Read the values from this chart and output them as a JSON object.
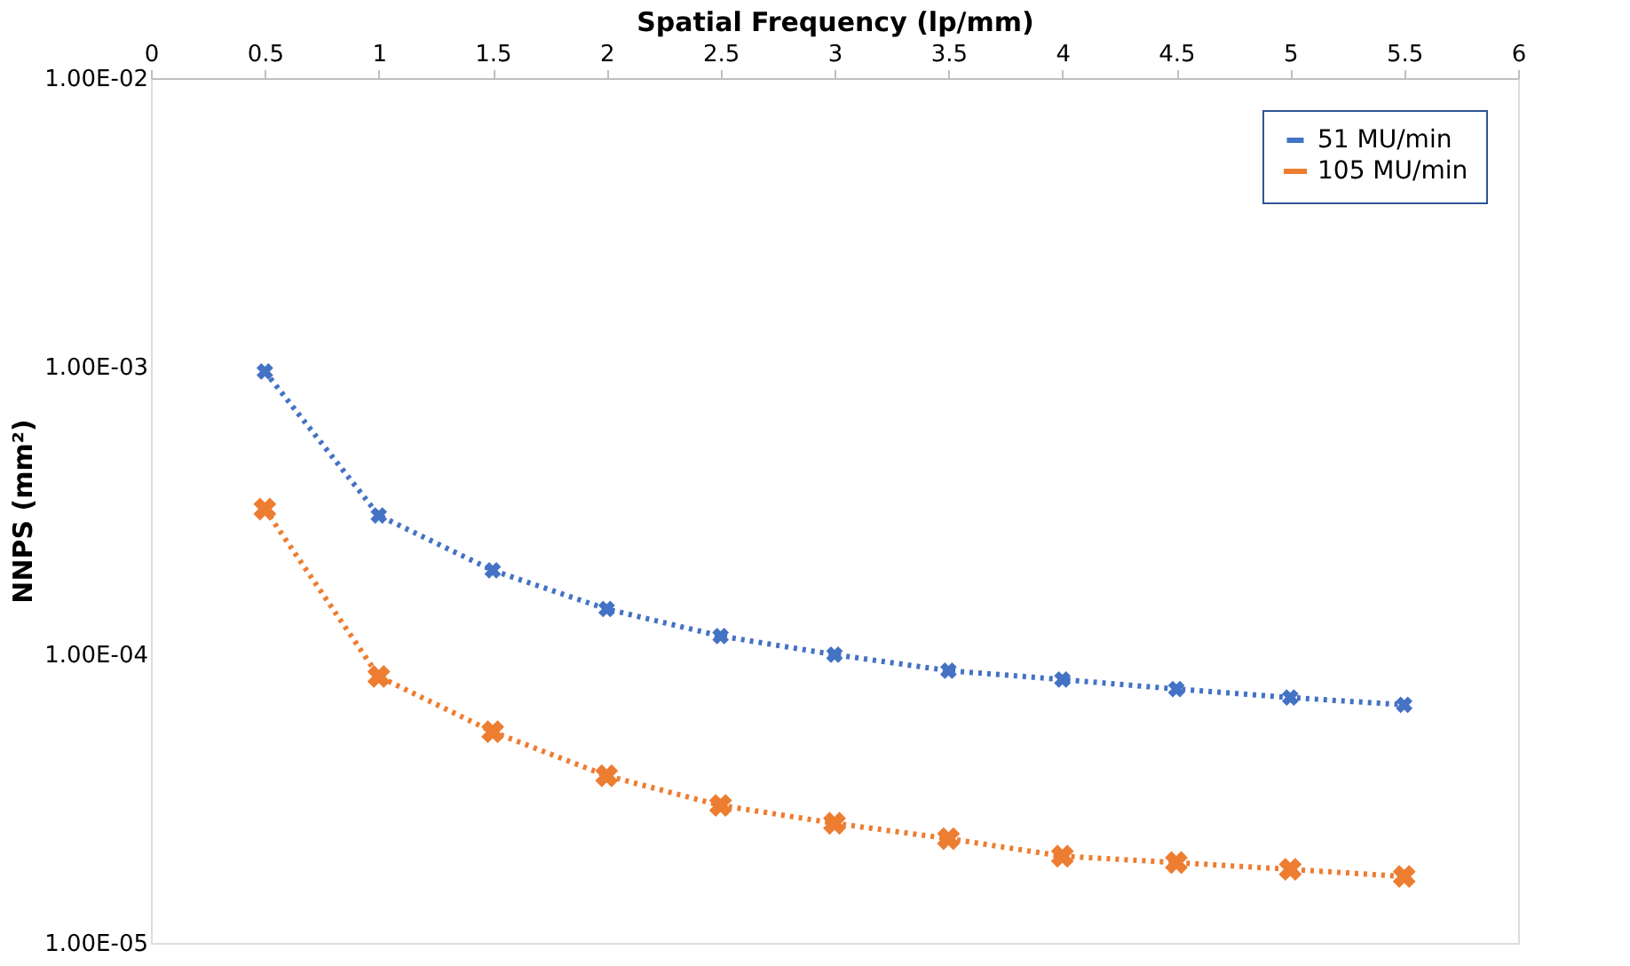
{
  "chart_data": {
    "type": "line",
    "xlabel": "Spatial Frequency (lp/mm)",
    "ylabel": "NNPS (mm²)",
    "log": "y",
    "grid": false,
    "legend": "top right",
    "marker": "cross",
    "line_style": "dotted",
    "x": [
      0.5,
      1,
      1.5,
      2,
      2.5,
      3,
      3.5,
      4,
      4.5,
      5,
      5.5
    ],
    "xlim": [
      0,
      6
    ],
    "xticks": [
      0,
      0.5,
      1,
      1.5,
      2,
      2.5,
      3,
      3.5,
      4,
      4.5,
      5,
      5.5,
      6
    ],
    "ylim": [
      1e-05,
      0.01
    ],
    "yticks": [
      {
        "value": 1e-05,
        "label": "1.00E-05"
      },
      {
        "value": 0.0001,
        "label": "1.00E-04"
      },
      {
        "value": 0.001,
        "label": "1.00E-03"
      },
      {
        "value": 0.01,
        "label": "1.00E-02"
      }
    ],
    "series": [
      {
        "name": "51 MU/min",
        "color": "#4472c4",
        "values": [
          0.00096,
          0.000304,
          0.000196,
          0.000144,
          0.000116,
          0.0001,
          8.8e-05,
          8.2e-05,
          7.6e-05,
          7.1e-05,
          6.7e-05
        ]
      },
      {
        "name": "105 MU/min",
        "color": "#ed7d31",
        "values": [
          0.00032,
          8.4e-05,
          5.4e-05,
          3.8e-05,
          3e-05,
          2.6e-05,
          2.3e-05,
          2e-05,
          1.9e-05,
          1.8e-05,
          1.7e-05
        ]
      }
    ]
  }
}
